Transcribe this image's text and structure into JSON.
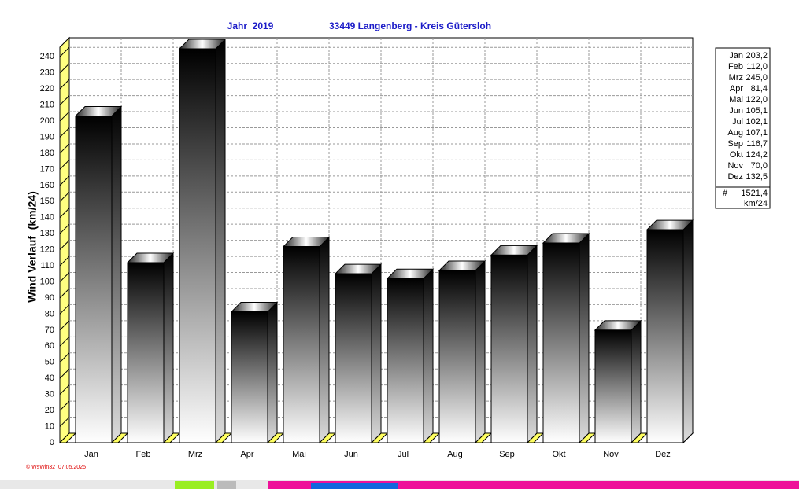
{
  "chart_data": {
    "type": "bar3d",
    "title": "Jahr  2019",
    "subtitle": "33449 Langenberg - Kreis Gütersloh",
    "y_label": "Wind Verlauf  (km/24)",
    "categories": [
      "Jan",
      "Feb",
      "Mrz",
      "Apr",
      "Mai",
      "Jun",
      "Jul",
      "Aug",
      "Sep",
      "Okt",
      "Nov",
      "Dez"
    ],
    "values": [
      203.2,
      112.0,
      245.0,
      81.4,
      122.0,
      105.1,
      102.1,
      107.1,
      116.7,
      124.2,
      70.0,
      132.5
    ],
    "value_labels": [
      "203,2",
      "112,0",
      "245,0",
      "81,4",
      "122,0",
      "105,1",
      "102,1",
      "107,1",
      "116,7",
      "124,2",
      "70,0",
      "132,5"
    ],
    "ylim": [
      0,
      246
    ],
    "yticks": [
      0,
      10,
      20,
      30,
      40,
      50,
      60,
      70,
      80,
      90,
      100,
      110,
      120,
      130,
      140,
      150,
      160,
      170,
      180,
      190,
      200,
      210,
      220,
      230,
      240
    ],
    "grid": true,
    "legend": "right",
    "total_symbol": "#",
    "total": 1521.4,
    "total_label": "1521,4",
    "unit": "km/24",
    "footer": "© WsWin32  07.05.2025"
  }
}
